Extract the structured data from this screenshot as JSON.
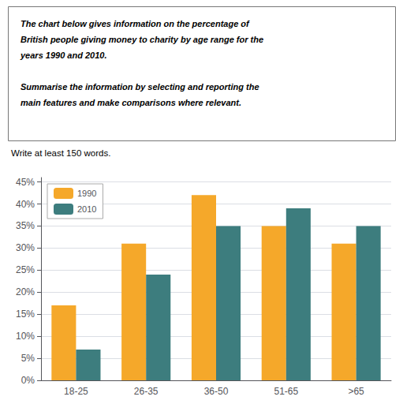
{
  "chart_data": {
    "type": "bar",
    "annotations": [
      "The chart below gives information on the percentage of",
      "British people giving money to charity by age range for the",
      "years 1990 and 2010.",
      "Summarise the information by selecting and reporting the",
      "main features and make comparisons where relevant."
    ],
    "subtitle": "Write at least 150 words.",
    "categories": [
      "18-25",
      "26-35",
      "36-50",
      "51-65",
      ">65"
    ],
    "series": [
      {
        "name": "1990",
        "color": "#F5A82A",
        "values": [
          17,
          31,
          42,
          35,
          31
        ]
      },
      {
        "name": "2010",
        "color": "#3D7D7E",
        "values": [
          7,
          24,
          35,
          39,
          35
        ]
      }
    ],
    "ylim": [
      0,
      46
    ],
    "yticks": [
      {
        "value": 0,
        "label": "0%"
      },
      {
        "value": 5,
        "label": "5%"
      },
      {
        "value": 10,
        "label": "10%"
      },
      {
        "value": 15,
        "label": "15%"
      },
      {
        "value": 20,
        "label": "20%"
      },
      {
        "value": 25,
        "label": "25%"
      },
      {
        "value": 30,
        "label": "30%"
      },
      {
        "value": 35,
        "label": "35%"
      },
      {
        "value": 40,
        "label": "40%"
      },
      {
        "value": 45,
        "label": "45%"
      }
    ],
    "grid": true,
    "legend": "upper left"
  }
}
